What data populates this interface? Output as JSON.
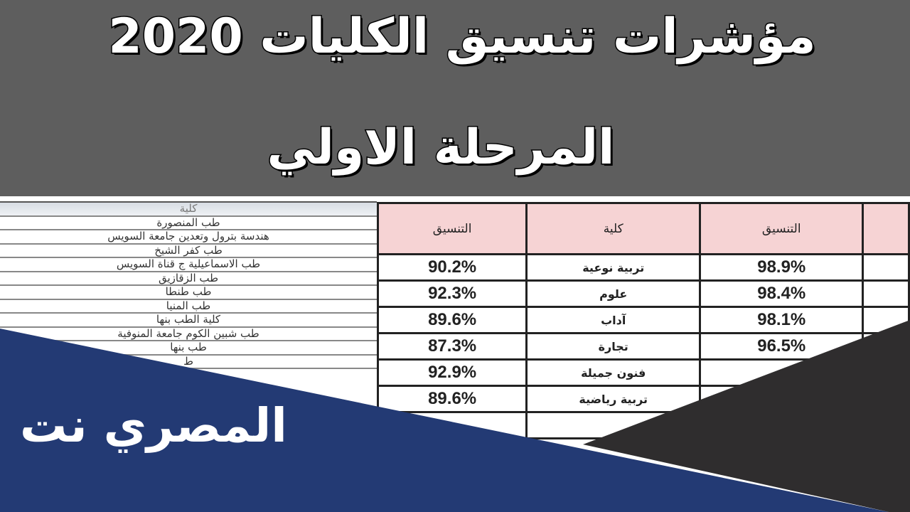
{
  "title_line1": "مؤشرات تنسيق الكليات 2020",
  "title_line2": "المرحلة الاولي",
  "left_table": {
    "header": "كلية",
    "rows": [
      "طب المنصورة",
      "هندسة بترول وتعدين جامعة السويس",
      "طب كفر الشيخ",
      "طب الاسماعيلية ج قناة السويس",
      "طب الزقازيق",
      "طب طنطا",
      "طب المنيا",
      "كلية الطب بنها",
      "طب شبين الكوم جامعة المنوفية",
      "طب بنها",
      "ط"
    ]
  },
  "right_table": {
    "headers": [
      "التنسيق",
      "كلية",
      "التنسيق",
      ""
    ],
    "rows": [
      [
        "90.2%",
        "تربية نوعية",
        "98.9%",
        ""
      ],
      [
        "92.3%",
        "علوم",
        "98.4%",
        ""
      ],
      [
        "89.6%",
        "آداب",
        "98.1%",
        ""
      ],
      [
        "87.3%",
        "تجارة",
        "96.5%",
        ""
      ],
      [
        "92.9%",
        "فنون جميلة",
        "",
        ""
      ],
      [
        "89.6%",
        "تربية رياضية",
        "",
        ""
      ],
      [
        "",
        "",
        "",
        ""
      ]
    ]
  },
  "logo_text": "المصري نت",
  "colors": {
    "banner": "#5e5e5e",
    "blue": "#233a74",
    "dark": "#2f2d2e",
    "header_pink": "#f6d3d4"
  }
}
